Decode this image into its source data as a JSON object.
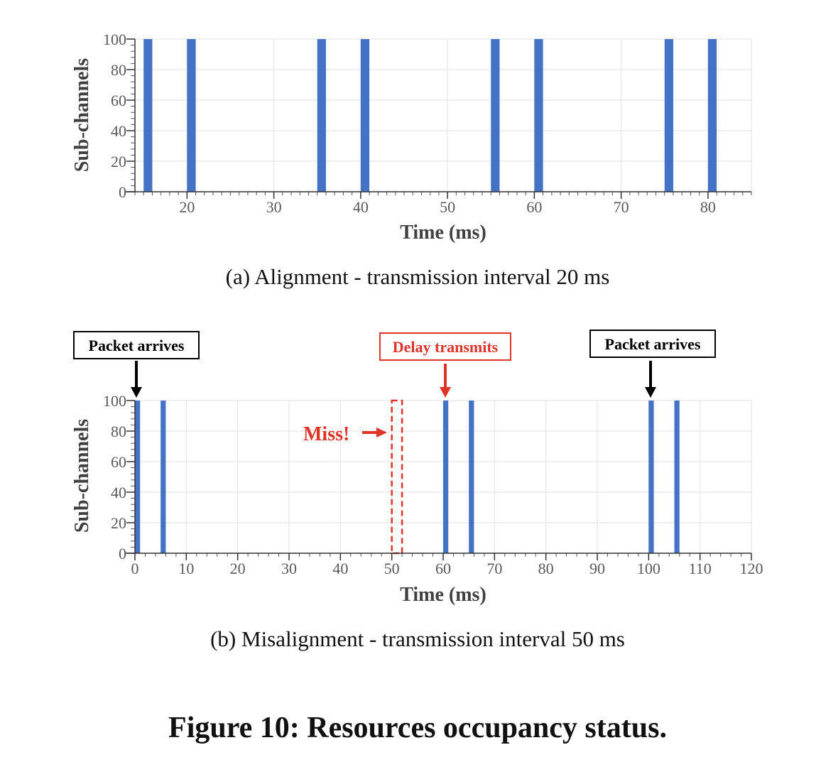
{
  "chart_data": [
    {
      "id": "a",
      "type": "bar",
      "x": [
        15,
        20,
        35,
        40,
        55,
        60,
        75,
        80
      ],
      "values": [
        100,
        100,
        100,
        100,
        100,
        100,
        100,
        100
      ],
      "bar_width_ms": 1,
      "xlim": [
        14,
        85
      ],
      "ylim": [
        0,
        100
      ],
      "xticks": [
        20,
        30,
        40,
        50,
        60,
        70,
        80
      ],
      "yticks": [
        0,
        20,
        40,
        60,
        80,
        100
      ],
      "xlabel": "Time (ms)",
      "ylabel": "Sub-channels",
      "grid": true,
      "color": "#4472c4",
      "caption": "(a)  Alignment - transmission interval 20 ms"
    },
    {
      "id": "b",
      "type": "bar",
      "x": [
        0,
        5,
        60,
        65,
        100,
        105
      ],
      "values": [
        100,
        100,
        100,
        100,
        100,
        100
      ],
      "bar_width_ms": 1,
      "missed": {
        "x_start": 50,
        "x_end": 52,
        "value": 100
      },
      "xlim": [
        0,
        120
      ],
      "ylim": [
        0,
        100
      ],
      "xticks": [
        0,
        10,
        20,
        30,
        40,
        50,
        60,
        70,
        80,
        90,
        100,
        110,
        120
      ],
      "yticks": [
        0,
        20,
        40,
        60,
        80,
        100
      ],
      "xlabel": "Time (ms)",
      "ylabel": "Sub-channels",
      "grid": true,
      "color": "#4472c4",
      "miss_color": "#e0342a",
      "annotations": {
        "packet_arrives_1": "Packet arrives",
        "delay_transmits": "Delay transmits",
        "packet_arrives_2": "Packet arrives",
        "miss": "Miss!"
      },
      "caption": "(b)  Misalignment - transmission interval 50 ms"
    }
  ],
  "figure_caption": "Figure 10: Resources occupancy status."
}
